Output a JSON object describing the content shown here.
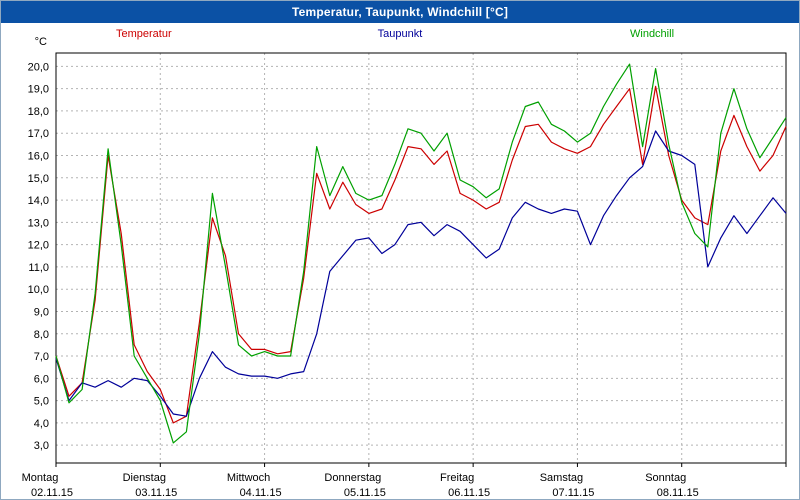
{
  "window": {
    "title": "Temperatur, Taupunkt, Windchill [°C]"
  },
  "colors": {
    "titlebar": "#0b51a5",
    "grid": "#b3b3b3",
    "axis": "#000000"
  },
  "chart_data": {
    "type": "line",
    "title": "Temperatur, Taupunkt, Windchill [°C]",
    "ylabel": "°C",
    "xlabel": "",
    "ylim": [
      3.0,
      20.0
    ],
    "y_tick_step": 1.0,
    "y_tick_labels": [
      "3,0",
      "4,0",
      "5,0",
      "6,0",
      "7,0",
      "8,0",
      "9,0",
      "10,0",
      "11,0",
      "12,0",
      "13,0",
      "14,0",
      "15,0",
      "16,0",
      "17,0",
      "18,0",
      "19,0",
      "20,0"
    ],
    "grid": "dashed",
    "legend_position": "top",
    "sample_interval_hours": 3,
    "x_days": [
      {
        "name": "Montag",
        "date": "02.11.15"
      },
      {
        "name": "Dienstag",
        "date": "03.11.15"
      },
      {
        "name": "Mittwoch",
        "date": "04.11.15"
      },
      {
        "name": "Donnerstag",
        "date": "05.11.15"
      },
      {
        "name": "Freitag",
        "date": "06.11.15"
      },
      {
        "name": "Samstag",
        "date": "07.11.15"
      },
      {
        "name": "Sonntag",
        "date": "08.11.15"
      }
    ],
    "series": [
      {
        "name": "Temperatur",
        "color": "#cc0000",
        "values": [
          7.0,
          5.2,
          5.8,
          9.5,
          16.0,
          12.5,
          7.5,
          6.3,
          5.5,
          4.0,
          4.3,
          8.5,
          13.2,
          11.5,
          8.0,
          7.3,
          7.3,
          7.1,
          7.2,
          10.5,
          15.2,
          13.6,
          14.8,
          13.8,
          13.4,
          13.6,
          14.9,
          16.4,
          16.3,
          15.6,
          16.2,
          14.3,
          14.0,
          13.6,
          13.9,
          15.8,
          17.3,
          17.4,
          16.6,
          16.3,
          16.1,
          16.4,
          17.4,
          18.2,
          19.0,
          15.6,
          19.1,
          16.0,
          14.0,
          13.2,
          12.9,
          16.2,
          17.8,
          16.4,
          15.3,
          16.0,
          17.3
        ]
      },
      {
        "name": "Taupunkt",
        "color": "#000099",
        "values": [
          6.9,
          5.0,
          5.8,
          5.6,
          5.9,
          5.6,
          6.0,
          5.9,
          5.2,
          4.4,
          4.3,
          6.0,
          7.2,
          6.5,
          6.2,
          6.1,
          6.1,
          6.0,
          6.2,
          6.3,
          8.0,
          10.8,
          11.5,
          12.2,
          12.3,
          11.6,
          12.0,
          12.9,
          13.0,
          12.4,
          12.9,
          12.6,
          12.0,
          11.4,
          11.8,
          13.2,
          13.9,
          13.6,
          13.4,
          13.6,
          13.5,
          12.0,
          13.3,
          14.2,
          15.0,
          15.5,
          17.1,
          16.2,
          16.0,
          15.6,
          11.0,
          12.3,
          13.3,
          12.5,
          13.3,
          14.1,
          13.4
        ]
      },
      {
        "name": "Windchill",
        "color": "#00a000",
        "values": [
          7.0,
          4.9,
          5.5,
          9.8,
          16.3,
          12.0,
          7.0,
          6.0,
          5.0,
          3.1,
          3.6,
          8.0,
          14.3,
          11.0,
          7.5,
          7.0,
          7.2,
          7.0,
          7.0,
          10.8,
          16.4,
          14.2,
          15.5,
          14.3,
          14.0,
          14.2,
          15.6,
          17.2,
          17.0,
          16.2,
          17.0,
          14.9,
          14.6,
          14.1,
          14.5,
          16.6,
          18.2,
          18.4,
          17.4,
          17.1,
          16.6,
          17.0,
          18.2,
          19.2,
          20.1,
          16.4,
          19.9,
          16.5,
          13.9,
          12.5,
          11.9,
          17.0,
          19.0,
          17.2,
          15.9,
          16.8,
          17.7
        ]
      }
    ]
  }
}
